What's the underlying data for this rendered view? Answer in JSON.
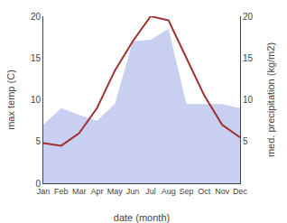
{
  "chart_data": {
    "type": "line",
    "xlabel": "date (month)",
    "ylabel": "max temp (C)",
    "y2label": "med. precipitation (kg/m2)",
    "categories": [
      "Jan",
      "Feb",
      "Mar",
      "Apr",
      "May",
      "Jun",
      "Jul",
      "Aug",
      "Sep",
      "Oct",
      "Nov",
      "Dec"
    ],
    "series": [
      {
        "type": "area",
        "color": "#c8cff0",
        "axis": "y2",
        "values": [
          7.0,
          9.0,
          8.2,
          7.5,
          9.5,
          17.0,
          17.2,
          18.5,
          9.5,
          9.5,
          9.5,
          9.0
        ]
      },
      {
        "type": "line",
        "color": "#a03030",
        "values": [
          4.8,
          4.5,
          6.0,
          9.0,
          13.5,
          17.0,
          20.0,
          19.5,
          15.0,
          10.5,
          7.0,
          5.5
        ]
      }
    ],
    "ylim": [
      0,
      20
    ],
    "yticks": [
      0,
      5,
      10,
      15,
      20
    ],
    "y2lim": [
      0,
      20
    ],
    "y2ticks": [
      5,
      10,
      15,
      20
    ],
    "grid": false
  }
}
